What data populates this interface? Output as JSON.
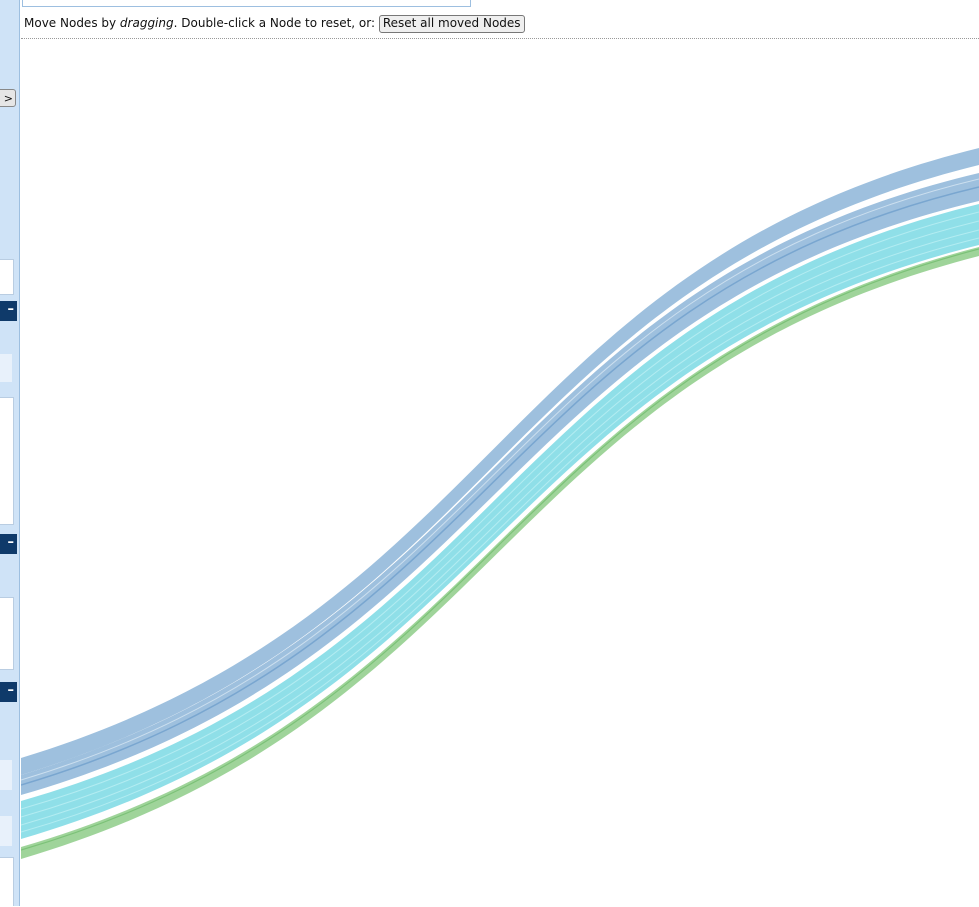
{
  "sidebar": {
    "toggle_label": "w >",
    "collapse_label": "–"
  },
  "instructions": {
    "prefix": "Move Nodes by ",
    "emph": "dragging",
    "suffix": ". Double-click a Node to reset, or: ",
    "reset_label": "Reset all moved Nodes"
  },
  "colors": {
    "flow_blue": "#9ec0de",
    "flow_blue_line": "#6f9fcc",
    "flow_cyan": "#8fdfe8",
    "flow_cyan_line": "#b8eef3",
    "flow_green": "#9fd49a",
    "flow_green_line": "#7cc278",
    "sidebar_bg": "#cfe3f7",
    "header_dark": "#0f3a6a"
  }
}
